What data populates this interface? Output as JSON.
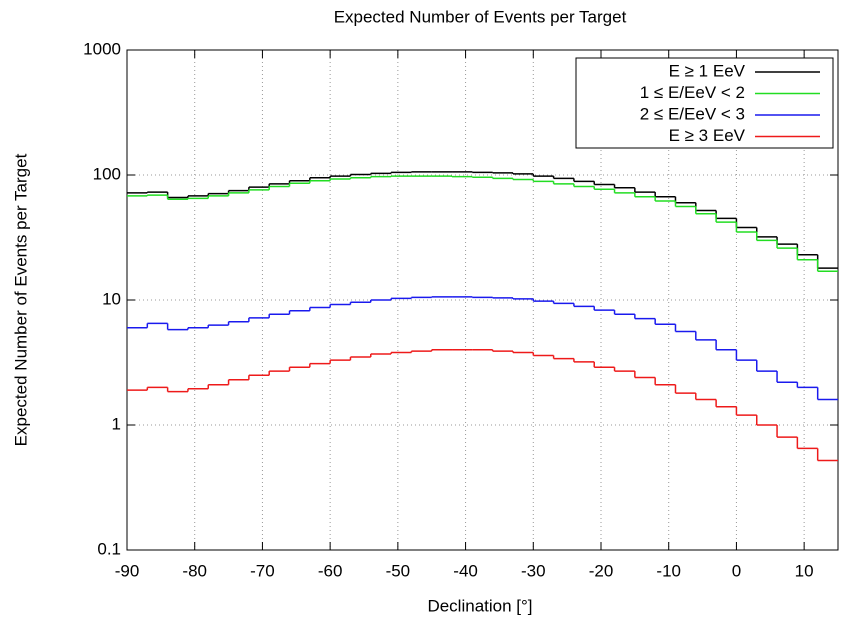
{
  "chart_data": {
    "type": "histogram",
    "title": "Expected Number of Events per Target",
    "xlabel": "Declination [°]",
    "ylabel": "Expected Number of Events per Target",
    "bins": [
      -90,
      -87,
      -84,
      -81,
      -78,
      -75,
      -72,
      -69,
      -66,
      -63,
      -60,
      -57,
      -54,
      -51,
      -48,
      -45,
      -42,
      -39,
      -36,
      -33,
      -30,
      -27,
      -24,
      -21,
      -18,
      -15,
      -12,
      -9,
      -6,
      -3,
      0,
      3,
      6,
      9,
      12,
      15
    ],
    "series": [
      {
        "name": "E ≥ 1 EeV",
        "color": "#000000",
        "values": [
          72,
          73,
          66,
          68,
          71,
          75,
          80,
          85,
          90,
          95,
          98,
          101,
          103,
          105,
          106,
          106,
          106,
          105,
          104,
          102,
          98,
          94,
          89,
          84,
          79,
          73,
          67,
          60,
          52,
          45,
          38,
          32,
          28,
          23,
          18
        ]
      },
      {
        "name": "1 ≤ E/EeV < 2",
        "color": "#22dd22",
        "values": [
          68,
          69,
          64,
          65,
          68,
          72,
          76,
          81,
          86,
          90,
          93,
          95,
          97,
          98,
          98,
          98,
          97,
          96,
          94,
          92,
          89,
          85,
          81,
          77,
          72,
          67,
          62,
          56,
          49,
          42,
          35,
          30,
          26,
          21,
          17
        ]
      },
      {
        "name": "2 ≤ E/EeV < 3",
        "color": "#1a1aee",
        "values": [
          6.0,
          6.5,
          5.8,
          6.0,
          6.3,
          6.7,
          7.2,
          7.7,
          8.2,
          8.7,
          9.2,
          9.6,
          10.0,
          10.3,
          10.5,
          10.6,
          10.6,
          10.5,
          10.4,
          10.2,
          9.8,
          9.4,
          8.9,
          8.3,
          7.7,
          7.1,
          6.4,
          5.6,
          4.8,
          4.0,
          3.3,
          2.7,
          2.2,
          2.0,
          1.6
        ]
      },
      {
        "name": "E ≥ 3 EeV",
        "color": "#ee1a1a",
        "values": [
          1.9,
          2.0,
          1.85,
          1.95,
          2.1,
          2.3,
          2.5,
          2.7,
          2.9,
          3.1,
          3.3,
          3.5,
          3.7,
          3.8,
          3.9,
          4.0,
          4.0,
          4.0,
          3.9,
          3.8,
          3.6,
          3.4,
          3.2,
          2.9,
          2.7,
          2.4,
          2.1,
          1.8,
          1.6,
          1.4,
          1.2,
          1.0,
          0.8,
          0.65,
          0.52
        ]
      }
    ],
    "xlim": [
      -90,
      15
    ],
    "xticks": [
      -90,
      -80,
      -70,
      -60,
      -50,
      -40,
      -30,
      -20,
      -10,
      0,
      10
    ],
    "ylim": [
      0.1,
      1000
    ],
    "yticks": [
      0.1,
      1,
      10,
      100,
      1000
    ],
    "log_y": true,
    "grid": true,
    "legend": "upper right"
  }
}
